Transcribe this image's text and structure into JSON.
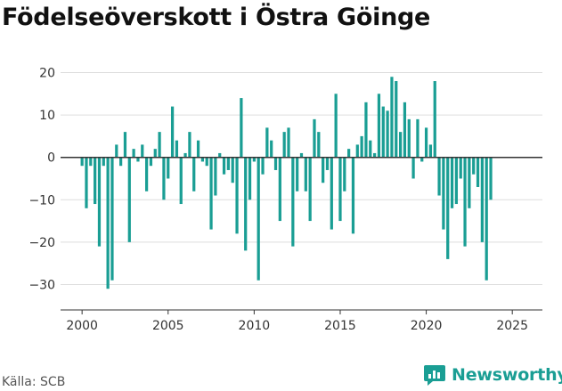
{
  "title": "Födelseöverskott i Östra Göinge",
  "source": "Källa: SCB",
  "brand": "Newsworthy",
  "colors": {
    "bar": "#1a9e94",
    "zero_line": "#333333",
    "grid": "#dddddd",
    "brand": "#1a9e94"
  },
  "chart_data": {
    "type": "bar",
    "title": "Födelseöverskott i Östra Göinge",
    "xlabel": "",
    "ylabel": "",
    "ylim": [
      -36,
      22
    ],
    "xlim": [
      1998.75,
      2026.75
    ],
    "grid": true,
    "legend": "none",
    "yticks": [
      20,
      10,
      0,
      -10,
      -20,
      -30
    ],
    "ytick_labels": [
      "20",
      "10",
      "0",
      "−10",
      "−20",
      "−30"
    ],
    "xticks": [
      2000,
      2005,
      2010,
      2015,
      2020,
      2025
    ],
    "xtick_labels": [
      "2000",
      "2005",
      "2010",
      "2015",
      "2020",
      "2025"
    ],
    "bar_width_years": 0.167,
    "start_quarter": "2000 Q1",
    "period": "quarterly",
    "values": [
      -2,
      -12,
      -2,
      -11,
      -21,
      -2,
      -31,
      -29,
      3,
      -2,
      6,
      -20,
      2,
      -1,
      3,
      -8,
      -2,
      2,
      6,
      -10,
      -5,
      12,
      4,
      -11,
      1,
      6,
      -8,
      4,
      -1,
      -2,
      -17,
      -9,
      1,
      -4,
      -3,
      -6,
      -18,
      14,
      -22,
      -10,
      -1,
      -29,
      -4,
      7,
      4,
      -3,
      -15,
      6,
      7,
      -21,
      -8,
      1,
      -8,
      -15,
      9,
      6,
      -6,
      -3,
      -17,
      15,
      -15,
      -8,
      2,
      -18,
      3,
      5,
      13,
      4,
      1,
      15,
      12,
      11,
      19,
      18,
      6,
      13,
      9,
      -5,
      9,
      -1,
      7,
      3,
      18,
      -9,
      -17,
      -24,
      -12,
      -11,
      -5,
      -21,
      -12,
      -4,
      -7,
      -20,
      -29,
      -10
    ]
  }
}
